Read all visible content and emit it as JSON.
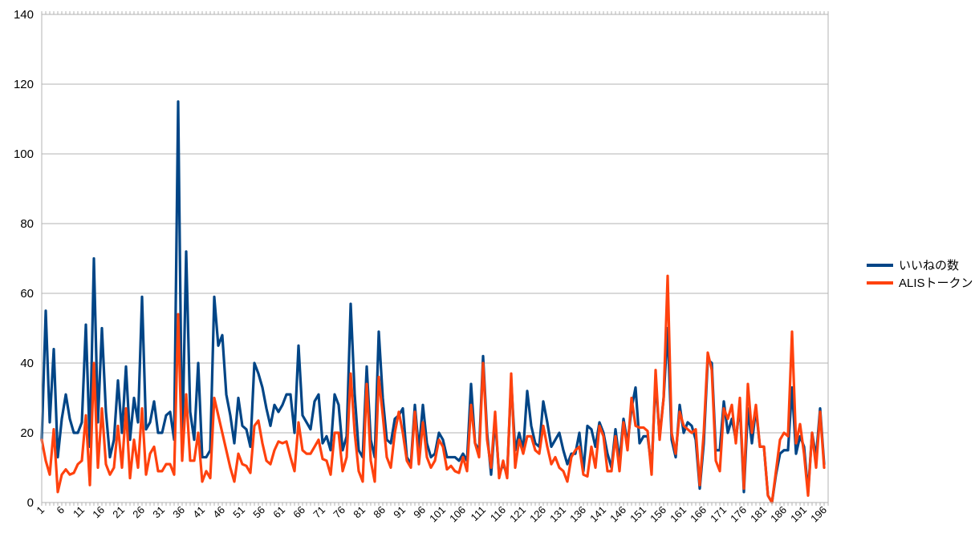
{
  "chart_data": {
    "type": "line",
    "title": "",
    "xlabel": "",
    "ylabel": "",
    "ylim": [
      0,
      140
    ],
    "y_ticks": [
      "0",
      "20",
      "40",
      "60",
      "80",
      "100",
      "120",
      "140"
    ],
    "x_tick_step": 5,
    "grid": "horizontal",
    "legend_position": "right",
    "x_count": 197,
    "series": [
      {
        "name": "いいねの数",
        "color": "#004586",
        "values": [
          18,
          55,
          23,
          44,
          13,
          24,
          31,
          24,
          20,
          20,
          23,
          51,
          16,
          70,
          23,
          50,
          26,
          13,
          18,
          35,
          20,
          39,
          18,
          30,
          23,
          59,
          21,
          23,
          29,
          20,
          20,
          25,
          26,
          18,
          115,
          14,
          72,
          26,
          18,
          40,
          13,
          13,
          15,
          59,
          45,
          48,
          31,
          25,
          17,
          30,
          22,
          21,
          16,
          40,
          37,
          33,
          27,
          22,
          28,
          26,
          28,
          31,
          31,
          20,
          45,
          25,
          23,
          21,
          29,
          31,
          17,
          19,
          15,
          31,
          28,
          15,
          19,
          57,
          31,
          15,
          13,
          39,
          18,
          13,
          49,
          30,
          18,
          17,
          24,
          25,
          27,
          13,
          11,
          28,
          15,
          28,
          17,
          13,
          14,
          20,
          18,
          13,
          13,
          13,
          12,
          14,
          12,
          34,
          17,
          15,
          42,
          20,
          8,
          24,
          8,
          11,
          8,
          35,
          15,
          20,
          15,
          32,
          22,
          17,
          16,
          29,
          23,
          16,
          18,
          20,
          15,
          11,
          14,
          14,
          20,
          9,
          22,
          21,
          16,
          23,
          20,
          14,
          10,
          21,
          12,
          24,
          17,
          27,
          33,
          17,
          19,
          19,
          10,
          35,
          19,
          30,
          50,
          18,
          13,
          28,
          20,
          23,
          22,
          18,
          4,
          17,
          41,
          40,
          15,
          15,
          29,
          20,
          24,
          18,
          28,
          3,
          27,
          17,
          27,
          16,
          16,
          2,
          0,
          8,
          14,
          15,
          15,
          33,
          14,
          19,
          16,
          3,
          20,
          13,
          27,
          11
        ],
        "sample_values_note_removed": ""
      },
      {
        "name": "ALISトークン",
        "color": "#ff420e",
        "values": [
          18,
          12,
          8,
          21,
          3,
          8,
          9.5,
          8,
          8.5,
          11,
          12,
          25,
          5,
          40,
          10,
          27,
          11,
          8,
          10,
          22,
          10,
          27,
          7,
          18,
          10,
          27,
          8,
          14,
          16,
          9,
          9,
          11,
          11,
          8,
          54,
          12,
          31,
          12,
          12,
          20,
          6,
          9,
          7,
          30,
          25,
          20,
          15,
          10,
          6,
          14,
          11,
          10.5,
          8.5,
          22,
          23.5,
          17,
          12,
          11,
          15,
          17.5,
          17,
          17.5,
          13,
          9,
          23,
          15,
          14,
          14,
          16,
          18,
          12.5,
          12,
          8,
          20,
          20,
          9,
          13,
          37,
          20,
          9,
          6,
          34,
          12,
          6,
          36,
          25,
          13,
          10,
          20,
          26,
          20,
          12,
          10,
          26,
          11,
          23,
          13,
          10,
          12,
          18,
          16,
          9.5,
          10.5,
          9,
          8.5,
          13,
          9,
          28,
          17,
          13,
          40,
          18,
          10,
          26,
          7,
          12,
          7,
          37,
          10,
          18,
          14,
          19,
          19,
          15,
          14,
          22,
          16,
          11,
          13,
          10,
          9,
          6,
          13,
          15,
          16,
          8,
          7.5,
          16,
          10,
          22,
          19,
          9,
          9,
          19,
          9,
          23,
          15,
          30,
          22,
          21.5,
          21.5,
          20.5,
          8,
          38,
          18,
          30,
          65,
          20,
          14,
          26,
          22,
          21,
          20,
          21,
          5,
          20,
          43,
          38,
          12,
          9,
          27,
          24,
          28,
          17,
          30,
          4,
          34,
          20,
          28,
          16,
          16,
          2,
          0,
          9,
          18,
          20,
          19,
          49,
          17,
          22.5,
          14,
          2,
          20,
          10,
          26,
          10
        ]
      }
    ]
  }
}
